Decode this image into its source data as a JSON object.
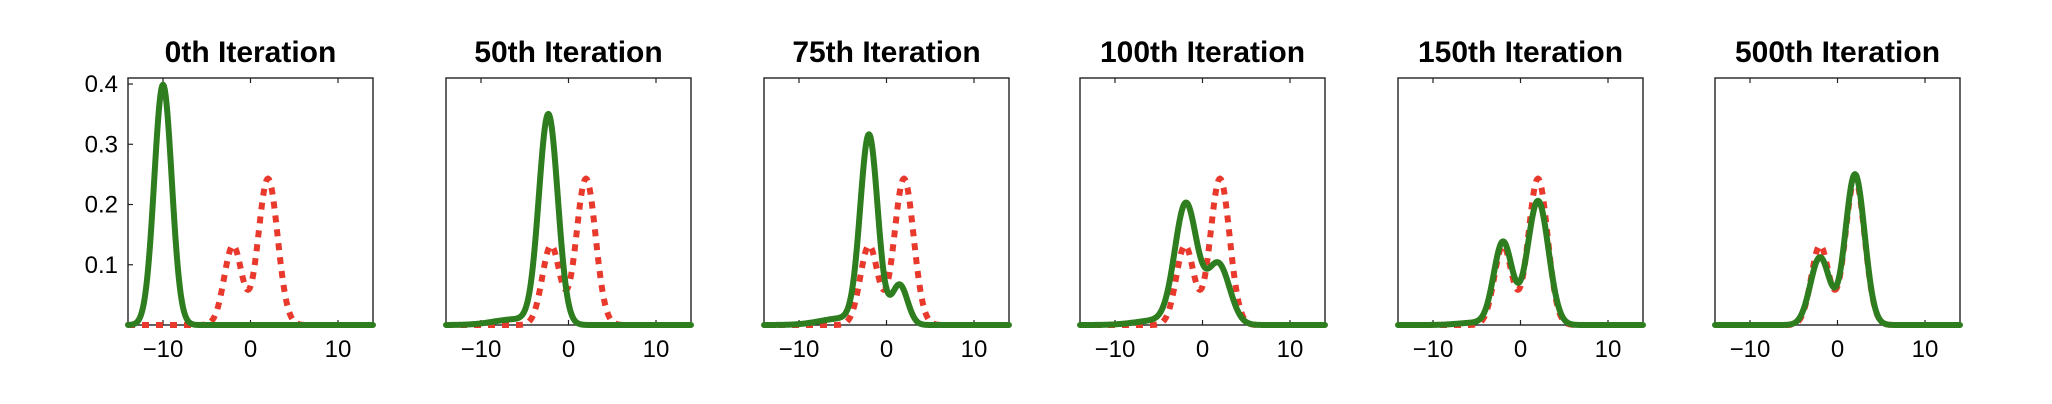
{
  "chart_data": [
    {
      "type": "line",
      "title": "0th Iteration",
      "xlim": [
        -14,
        14
      ],
      "ylim": [
        0,
        0.41
      ],
      "xticks": [
        -10,
        0,
        10
      ],
      "yticks": [
        0.1,
        0.2,
        0.3,
        0.4
      ],
      "show_yticks": true,
      "series": [
        {
          "role": "target",
          "color": "#e8392c",
          "style": "dotted",
          "components": [
            {
              "weight": 0.33,
              "mean": -2,
              "sd": 1.0
            },
            {
              "weight": 0.67,
              "mean": 2,
              "sd": 1.1
            }
          ]
        },
        {
          "role": "approximation",
          "color": "#2e7d1e",
          "style": "solid",
          "components": [
            {
              "weight": 1.0,
              "mean": -10,
              "sd": 1.0
            }
          ]
        }
      ]
    },
    {
      "type": "line",
      "title": "50th Iteration",
      "xlim": [
        -14,
        14
      ],
      "ylim": [
        0,
        0.41
      ],
      "xticks": [
        -10,
        0,
        10
      ],
      "yticks": [
        0.1,
        0.2,
        0.3,
        0.4
      ],
      "show_yticks": false,
      "series": [
        {
          "role": "target",
          "color": "#e8392c",
          "style": "dotted",
          "components": [
            {
              "weight": 0.33,
              "mean": -2,
              "sd": 1.0
            },
            {
              "weight": 0.67,
              "mean": 2,
              "sd": 1.1
            }
          ]
        },
        {
          "role": "approximation",
          "color": "#2e7d1e",
          "style": "solid",
          "components": [
            {
              "weight": 0.94,
              "mean": -2.3,
              "sd": 1.08
            },
            {
              "weight": 0.06,
              "mean": -6,
              "sd": 2.5
            }
          ]
        }
      ]
    },
    {
      "type": "line",
      "title": "75th Iteration",
      "xlim": [
        -14,
        14
      ],
      "ylim": [
        0,
        0.41
      ],
      "xticks": [
        -10,
        0,
        10
      ],
      "yticks": [
        0.1,
        0.2,
        0.3,
        0.4
      ],
      "show_yticks": false,
      "series": [
        {
          "role": "target",
          "color": "#e8392c",
          "style": "dotted",
          "components": [
            {
              "weight": 0.33,
              "mean": -2,
              "sd": 1.0
            },
            {
              "weight": 0.67,
              "mean": 2,
              "sd": 1.1
            }
          ]
        },
        {
          "role": "approximation",
          "color": "#2e7d1e",
          "style": "solid",
          "components": [
            {
              "weight": 0.78,
              "mean": -2.0,
              "sd": 1.0
            },
            {
              "weight": 0.15,
              "mean": 1.5,
              "sd": 0.9
            },
            {
              "weight": 0.07,
              "mean": -5,
              "sd": 2.5
            }
          ]
        }
      ]
    },
    {
      "type": "line",
      "title": "100th Iteration",
      "xlim": [
        -14,
        14
      ],
      "ylim": [
        0,
        0.41
      ],
      "xticks": [
        -10,
        0,
        10
      ],
      "yticks": [
        0.1,
        0.2,
        0.3,
        0.4
      ],
      "show_yticks": false,
      "series": [
        {
          "role": "target",
          "color": "#e8392c",
          "style": "dotted",
          "components": [
            {
              "weight": 0.33,
              "mean": -2,
              "sd": 1.0
            },
            {
              "weight": 0.67,
              "mean": 2,
              "sd": 1.1
            }
          ]
        },
        {
          "role": "approximation",
          "color": "#2e7d1e",
          "style": "solid",
          "components": [
            {
              "weight": 0.62,
              "mean": -1.9,
              "sd": 1.25
            },
            {
              "weight": 0.33,
              "mean": 1.8,
              "sd": 1.3
            },
            {
              "weight": 0.05,
              "mean": -5,
              "sd": 2.5
            }
          ]
        }
      ]
    },
    {
      "type": "line",
      "title": "150th Iteration",
      "xlim": [
        -14,
        14
      ],
      "ylim": [
        0,
        0.41
      ],
      "xticks": [
        -10,
        0,
        10
      ],
      "yticks": [
        0.1,
        0.2,
        0.3,
        0.4
      ],
      "show_yticks": false,
      "series": [
        {
          "role": "target",
          "color": "#e8392c",
          "style": "dotted",
          "components": [
            {
              "weight": 0.33,
              "mean": -2,
              "sd": 1.0
            },
            {
              "weight": 0.67,
              "mean": 2,
              "sd": 1.1
            }
          ]
        },
        {
          "role": "approximation",
          "color": "#2e7d1e",
          "style": "solid",
          "components": [
            {
              "weight": 0.36,
              "mean": -2.0,
              "sd": 1.05
            },
            {
              "weight": 0.62,
              "mean": 2.0,
              "sd": 1.2
            },
            {
              "weight": 0.02,
              "mean": -5,
              "sd": 2.0
            }
          ]
        }
      ]
    },
    {
      "type": "line",
      "title": "500th Iteration",
      "xlim": [
        -14,
        14
      ],
      "ylim": [
        0,
        0.41
      ],
      "xticks": [
        -10,
        0,
        10
      ],
      "yticks": [
        0.1,
        0.2,
        0.3,
        0.4
      ],
      "show_yticks": false,
      "series": [
        {
          "role": "target",
          "color": "#e8392c",
          "style": "dotted",
          "components": [
            {
              "weight": 0.33,
              "mean": -2,
              "sd": 1.0
            },
            {
              "weight": 0.67,
              "mean": 2,
              "sd": 1.1
            }
          ]
        },
        {
          "role": "approximation",
          "color": "#2e7d1e",
          "style": "solid",
          "components": [
            {
              "weight": 0.31,
              "mean": -2.0,
              "sd": 1.1
            },
            {
              "weight": 0.69,
              "mean": 2.0,
              "sd": 1.1
            }
          ]
        }
      ]
    }
  ]
}
